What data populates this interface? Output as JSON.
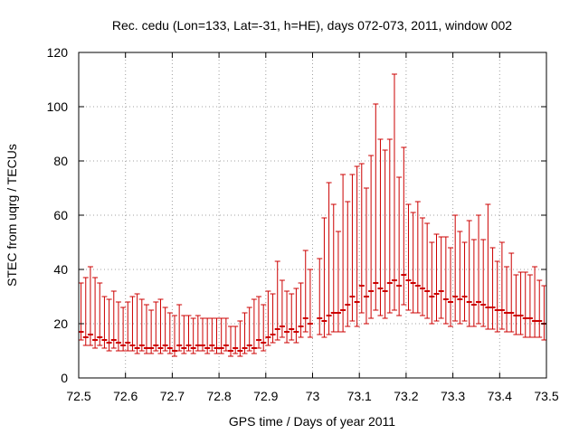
{
  "chart_data": {
    "type": "scatter",
    "title": "Rec. cedu (Lon=133, Lat=-31, h=HE), days 072-073, 2011, window 002",
    "xlabel": "GPS time / Days of year 2011",
    "ylabel": "STEC from uqrg / TECUs",
    "xlim": [
      72.5,
      73.5
    ],
    "ylim": [
      0,
      120
    ],
    "xticks": [
      "72.5",
      "72.6",
      "72.7",
      "72.8",
      "72.9",
      "73",
      "73.1",
      "73.2",
      "73.3",
      "73.4",
      "73.5"
    ],
    "yticks": [
      "0",
      "20",
      "40",
      "60",
      "80",
      "100",
      "120"
    ],
    "grid": true,
    "legend": "none",
    "series_color": "#cc0000",
    "series": [
      {
        "x": [
          72.505,
          72.515,
          72.525,
          72.535,
          72.545,
          72.555,
          72.565,
          72.575,
          72.585,
          72.595,
          72.605,
          72.615,
          72.625,
          72.635,
          72.645,
          72.655,
          72.665,
          72.675,
          72.685,
          72.695,
          72.705,
          72.715,
          72.725,
          72.735,
          72.745,
          72.755,
          72.765,
          72.775,
          72.785,
          72.795,
          72.805,
          72.815,
          72.825,
          72.835,
          72.845,
          72.855,
          72.865,
          72.875,
          72.885,
          72.895,
          72.905,
          72.915,
          72.925,
          72.935,
          72.945,
          72.955,
          72.965,
          72.975,
          72.985,
          72.995,
          73.015,
          73.025,
          73.035,
          73.045,
          73.055,
          73.065,
          73.075,
          73.085,
          73.095,
          73.105,
          73.115,
          73.125,
          73.135,
          73.145,
          73.155,
          73.165,
          73.175,
          73.185,
          73.195,
          73.205,
          73.215,
          73.225,
          73.235,
          73.245,
          73.255,
          73.265,
          73.275,
          73.285,
          73.295,
          73.305,
          73.315,
          73.325,
          73.335,
          73.345,
          73.355,
          73.365,
          73.375,
          73.385,
          73.395,
          73.405,
          73.415,
          73.425,
          73.435,
          73.445,
          73.455,
          73.465,
          73.475,
          73.485,
          73.495
        ],
        "y": [
          17,
          15,
          16,
          14,
          15,
          14,
          13,
          14,
          13,
          12,
          13,
          12,
          11,
          12,
          11,
          11,
          12,
          11,
          12,
          11,
          10,
          12,
          11,
          12,
          11,
          12,
          12,
          11,
          12,
          11,
          11,
          12,
          10,
          11,
          10,
          11,
          12,
          11,
          14,
          13,
          15,
          16,
          18,
          19,
          17,
          18,
          17,
          19,
          22,
          20,
          22,
          21,
          23,
          24,
          24,
          25,
          27,
          30,
          28,
          34,
          30,
          32,
          35,
          33,
          32,
          35,
          36,
          34,
          38,
          36,
          35,
          34,
          33,
          32,
          30,
          31,
          32,
          29,
          28,
          30,
          29,
          30,
          28,
          27,
          28,
          27,
          26,
          26,
          25,
          25,
          24,
          24,
          23,
          23,
          22,
          22,
          21,
          21,
          20
        ],
        "err_low": [
          3,
          3,
          4,
          3,
          3,
          3,
          3,
          3,
          3,
          2,
          3,
          2,
          2,
          2,
          2,
          2,
          2,
          2,
          2,
          2,
          2,
          2,
          2,
          2,
          2,
          2,
          2,
          2,
          2,
          2,
          2,
          2,
          2,
          2,
          2,
          2,
          2,
          2,
          3,
          3,
          3,
          3,
          4,
          4,
          4,
          4,
          4,
          4,
          5,
          5,
          6,
          6,
          7,
          7,
          7,
          8,
          8,
          9,
          9,
          10,
          10,
          10,
          10,
          10,
          10,
          11,
          11,
          11,
          11,
          11,
          11,
          10,
          10,
          10,
          10,
          10,
          10,
          9,
          9,
          9,
          9,
          9,
          9,
          8,
          8,
          8,
          8,
          8,
          8,
          7,
          7,
          7,
          7,
          7,
          7,
          7,
          6,
          6,
          6
        ],
        "err_high": [
          18,
          22,
          25,
          23,
          20,
          16,
          16,
          18,
          15,
          14,
          15,
          18,
          20,
          17,
          16,
          14,
          16,
          18,
          14,
          13,
          13,
          15,
          12,
          11,
          11,
          11,
          10,
          11,
          10,
          11,
          11,
          10,
          9,
          8,
          11,
          13,
          14,
          18,
          16,
          14,
          17,
          15,
          25,
          17,
          15,
          13,
          16,
          16,
          25,
          20,
          22,
          38,
          49,
          40,
          30,
          50,
          38,
          45,
          50,
          45,
          40,
          50,
          66,
          55,
          52,
          53,
          76,
          40,
          47,
          28,
          26,
          31,
          26,
          25,
          20,
          22,
          20,
          23,
          20,
          30,
          25,
          20,
          30,
          24,
          32,
          24,
          38,
          22,
          18,
          25,
          17,
          22,
          15,
          16,
          17,
          16,
          20,
          15,
          14
        ]
      }
    ]
  }
}
